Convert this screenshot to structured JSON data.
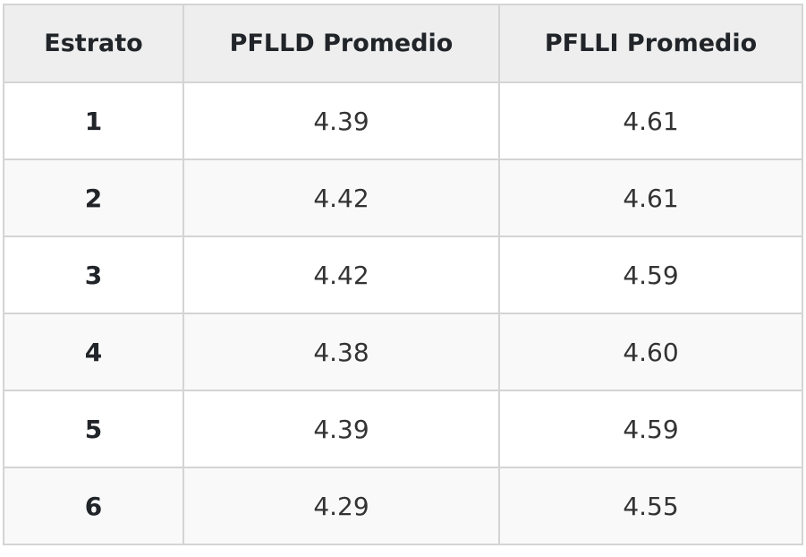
{
  "table": {
    "headers": [
      "Estrato",
      "PFLLD Promedio",
      "PFLLI Promedio"
    ],
    "rows": [
      [
        "1",
        "4.39",
        "4.61"
      ],
      [
        "2",
        "4.42",
        "4.61"
      ],
      [
        "3",
        "4.42",
        "4.59"
      ],
      [
        "4",
        "4.38",
        "4.60"
      ],
      [
        "5",
        "4.39",
        "4.59"
      ],
      [
        "6",
        "4.29",
        "4.55"
      ]
    ]
  },
  "colors": {
    "header_background": "#eeeeee",
    "border": "#d4d4d4",
    "row_alt_background": "#f9f9f9"
  }
}
